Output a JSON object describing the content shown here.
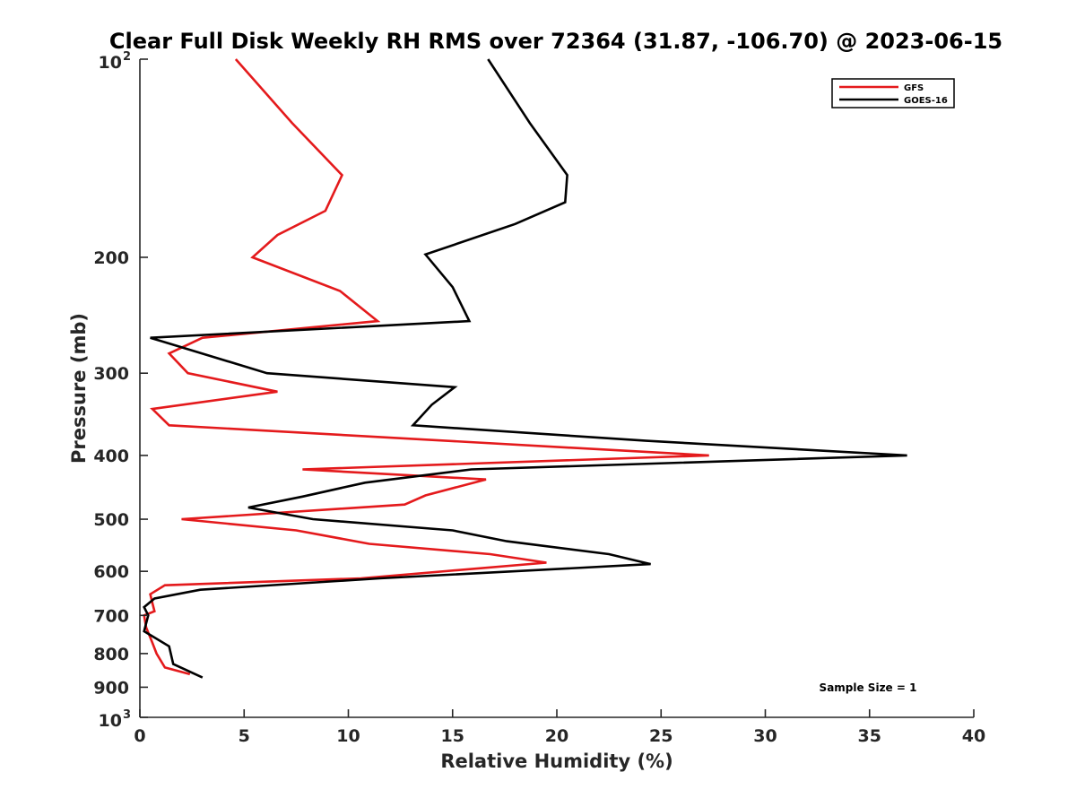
{
  "chart_data": {
    "type": "line",
    "title": "Clear Full Disk Weekly RH RMS over 72364 (31.87, -106.70) @ 2023-06-15",
    "xlabel": "Relative Humidity (%)",
    "ylabel": "Pressure (mb)",
    "xlim": [
      0,
      40
    ],
    "ylim": [
      100,
      1000
    ],
    "y_scale": "log",
    "y_reversed": true,
    "grid": false,
    "legend_placement": "top-right",
    "x_ticks": [
      "0",
      "5",
      "10",
      "15",
      "20",
      "25",
      "30",
      "35",
      "40"
    ],
    "x_tick_values": [
      0,
      5,
      10,
      15,
      20,
      25,
      30,
      35,
      40
    ],
    "y_ticks": [
      {
        "value": 100,
        "base": "10",
        "exp": "2"
      },
      {
        "value": 200,
        "label": "200"
      },
      {
        "value": 300,
        "label": "300"
      },
      {
        "value": 400,
        "label": "400"
      },
      {
        "value": 500,
        "label": "500"
      },
      {
        "value": 600,
        "label": "600"
      },
      {
        "value": 700,
        "label": "700"
      },
      {
        "value": 800,
        "label": "800"
      },
      {
        "value": 900,
        "label": "900"
      },
      {
        "value": 1000,
        "base": "10",
        "exp": "3"
      }
    ],
    "series": [
      {
        "name": "GFS",
        "color": "#e41a1c",
        "points": [
          {
            "rh": 4.6,
            "p": 100
          },
          {
            "rh": 7.3,
            "p": 125
          },
          {
            "rh": 9.7,
            "p": 150
          },
          {
            "rh": 8.9,
            "p": 170
          },
          {
            "rh": 6.6,
            "p": 185
          },
          {
            "rh": 5.4,
            "p": 200
          },
          {
            "rh": 9.6,
            "p": 225
          },
          {
            "rh": 11.4,
            "p": 250
          },
          {
            "rh": 3.0,
            "p": 265
          },
          {
            "rh": 1.4,
            "p": 280
          },
          {
            "rh": 2.3,
            "p": 300
          },
          {
            "rh": 6.6,
            "p": 320
          },
          {
            "rh": 0.6,
            "p": 340
          },
          {
            "rh": 1.4,
            "p": 360
          },
          {
            "rh": 27.3,
            "p": 400
          },
          {
            "rh": 7.8,
            "p": 420
          },
          {
            "rh": 16.6,
            "p": 435
          },
          {
            "rh": 13.7,
            "p": 460
          },
          {
            "rh": 12.7,
            "p": 475
          },
          {
            "rh": 2.0,
            "p": 500
          },
          {
            "rh": 7.5,
            "p": 520
          },
          {
            "rh": 11.0,
            "p": 545
          },
          {
            "rh": 16.8,
            "p": 565
          },
          {
            "rh": 19.5,
            "p": 582
          },
          {
            "rh": 10.6,
            "p": 615
          },
          {
            "rh": 1.2,
            "p": 630
          },
          {
            "rh": 0.5,
            "p": 650
          },
          {
            "rh": 0.6,
            "p": 670
          },
          {
            "rh": 0.7,
            "p": 690
          },
          {
            "rh": 0.2,
            "p": 700
          },
          {
            "rh": 0.3,
            "p": 730
          },
          {
            "rh": 0.6,
            "p": 770
          },
          {
            "rh": 0.8,
            "p": 800
          },
          {
            "rh": 1.2,
            "p": 840
          },
          {
            "rh": 2.4,
            "p": 860
          }
        ]
      },
      {
        "name": "GOES-16",
        "color": "#000000",
        "points": [
          {
            "rh": 16.7,
            "p": 100
          },
          {
            "rh": 18.7,
            "p": 125
          },
          {
            "rh": 20.5,
            "p": 150
          },
          {
            "rh": 20.4,
            "p": 165
          },
          {
            "rh": 18.0,
            "p": 178
          },
          {
            "rh": 13.7,
            "p": 198
          },
          {
            "rh": 15.0,
            "p": 222
          },
          {
            "rh": 15.8,
            "p": 250
          },
          {
            "rh": 0.5,
            "p": 265
          },
          {
            "rh": 6.1,
            "p": 300
          },
          {
            "rh": 15.1,
            "p": 315
          },
          {
            "rh": 14.0,
            "p": 335
          },
          {
            "rh": 13.1,
            "p": 360
          },
          {
            "rh": 24.3,
            "p": 380
          },
          {
            "rh": 36.8,
            "p": 400
          },
          {
            "rh": 15.9,
            "p": 420
          },
          {
            "rh": 10.8,
            "p": 440
          },
          {
            "rh": 7.8,
            "p": 462
          },
          {
            "rh": 5.2,
            "p": 480
          },
          {
            "rh": 8.3,
            "p": 500
          },
          {
            "rh": 15.0,
            "p": 520
          },
          {
            "rh": 17.6,
            "p": 540
          },
          {
            "rh": 22.5,
            "p": 565
          },
          {
            "rh": 24.5,
            "p": 585
          },
          {
            "rh": 11.5,
            "p": 615
          },
          {
            "rh": 2.9,
            "p": 640
          },
          {
            "rh": 0.7,
            "p": 660
          },
          {
            "rh": 0.2,
            "p": 680
          },
          {
            "rh": 0.4,
            "p": 700
          },
          {
            "rh": 0.2,
            "p": 740
          },
          {
            "rh": 1.4,
            "p": 780
          },
          {
            "rh": 1.6,
            "p": 830
          },
          {
            "rh": 3.0,
            "p": 870
          }
        ]
      }
    ],
    "annotation": "Sample Size = 1"
  }
}
